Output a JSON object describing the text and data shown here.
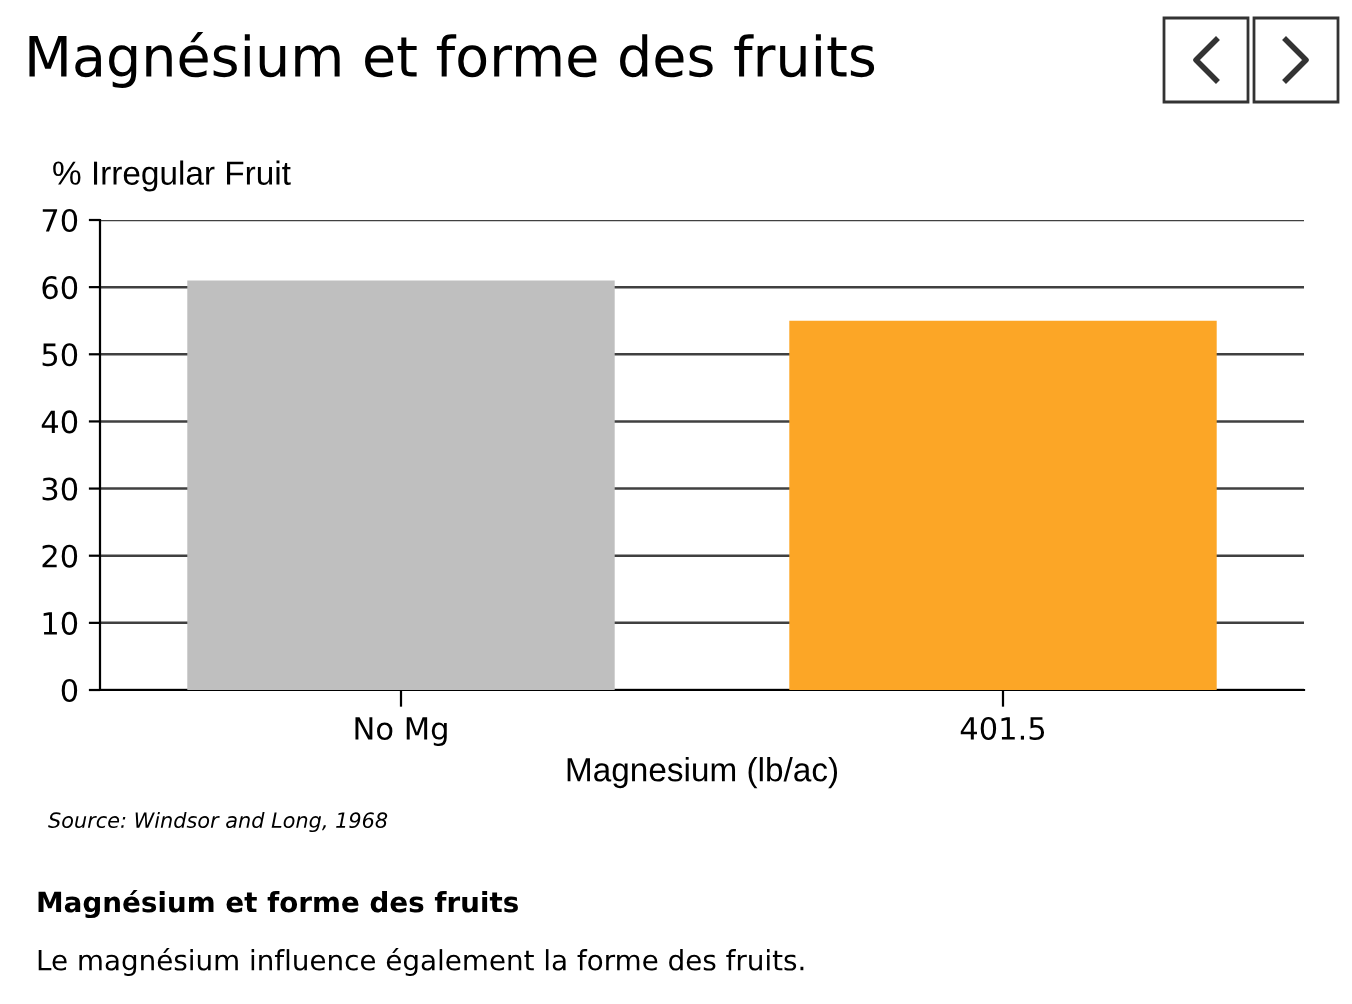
{
  "chart_data": {
    "type": "bar",
    "title": "Magnésium et forme des fruits",
    "ylabel": "% Irregular Fruit",
    "xlabel": "Magnesium (lb/ac)",
    "categories": [
      "No Mg",
      "401.5"
    ],
    "values": [
      61,
      55
    ],
    "colors": [
      "#bfbfbf",
      "#fca626"
    ],
    "ylim": [
      0,
      70
    ],
    "yticks": [
      0,
      10,
      20,
      30,
      40,
      50,
      60,
      70
    ],
    "grid": "y",
    "annotations": [
      "Source: Windsor and Long, 1968",
      "Magnésium et forme des fruits",
      "Le magnésium influence également la forme des fruits."
    ]
  }
}
